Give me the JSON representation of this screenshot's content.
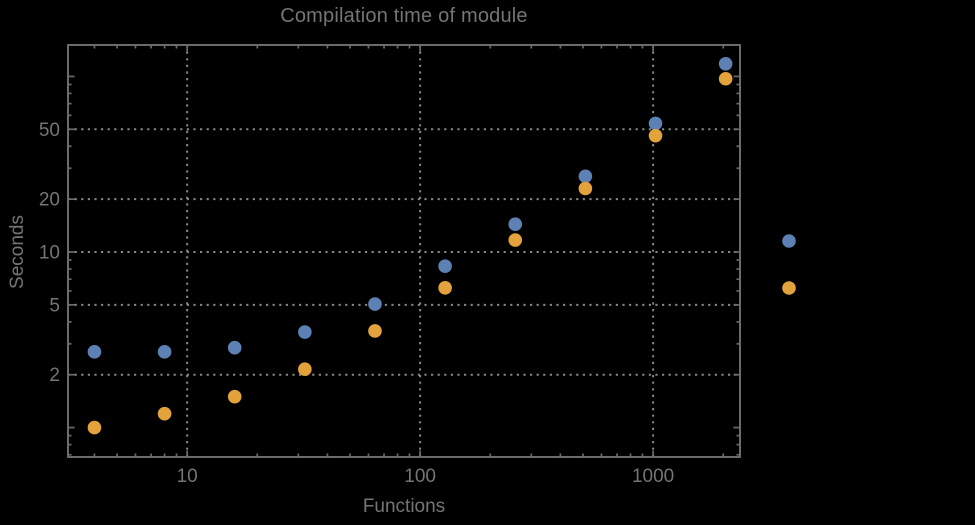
{
  "colors": {
    "background": "#000000",
    "frame": "#6b6b6b",
    "grid": "#878787",
    "text": "#757575",
    "series_blue": "#5E81B5",
    "series_orange": "#E3A23C"
  },
  "chart_data": {
    "type": "scatter",
    "title": "Compilation time of module",
    "xlabel": "Functions",
    "ylabel": "Seconds",
    "x_scale": "log",
    "y_scale": "log",
    "xlim": [
      3.08,
      2360
    ],
    "ylim": [
      0.68,
      151
    ],
    "grid": "dotted gray lines at labeled ticks only",
    "legend_position": "outside-right, markers only (no visible label text)",
    "x_ticks": [
      {
        "value": 10,
        "label": "10"
      },
      {
        "value": 100,
        "label": "100"
      },
      {
        "value": 1000,
        "label": "1000"
      }
    ],
    "y_ticks": [
      {
        "value": 50,
        "label": "50"
      },
      {
        "value": 20,
        "label": "20"
      },
      {
        "value": 10,
        "label": "10"
      },
      {
        "value": 5,
        "label": "5"
      },
      {
        "value": 2,
        "label": "2"
      }
    ],
    "y_ticks_unlabeled_major": [
      1,
      100
    ],
    "x": [
      4,
      8,
      16,
      32,
      64,
      128,
      256,
      512,
      1024,
      2048
    ],
    "series": [
      {
        "name": "blue-series",
        "color": "#5E81B5",
        "values": [
          2.7,
          2.7,
          2.85,
          3.5,
          5.05,
          8.3,
          14.4,
          27,
          54,
          118
        ]
      },
      {
        "name": "orange-series",
        "color": "#E3A23C",
        "values": [
          1.0,
          1.2,
          1.5,
          2.15,
          3.55,
          6.25,
          11.7,
          23,
          46,
          97
        ]
      }
    ],
    "legend": {
      "entries": [
        {
          "series": "blue-series",
          "color": "#5E81B5",
          "label": ""
        },
        {
          "series": "orange-series",
          "color": "#E3A23C",
          "label": ""
        }
      ]
    }
  }
}
